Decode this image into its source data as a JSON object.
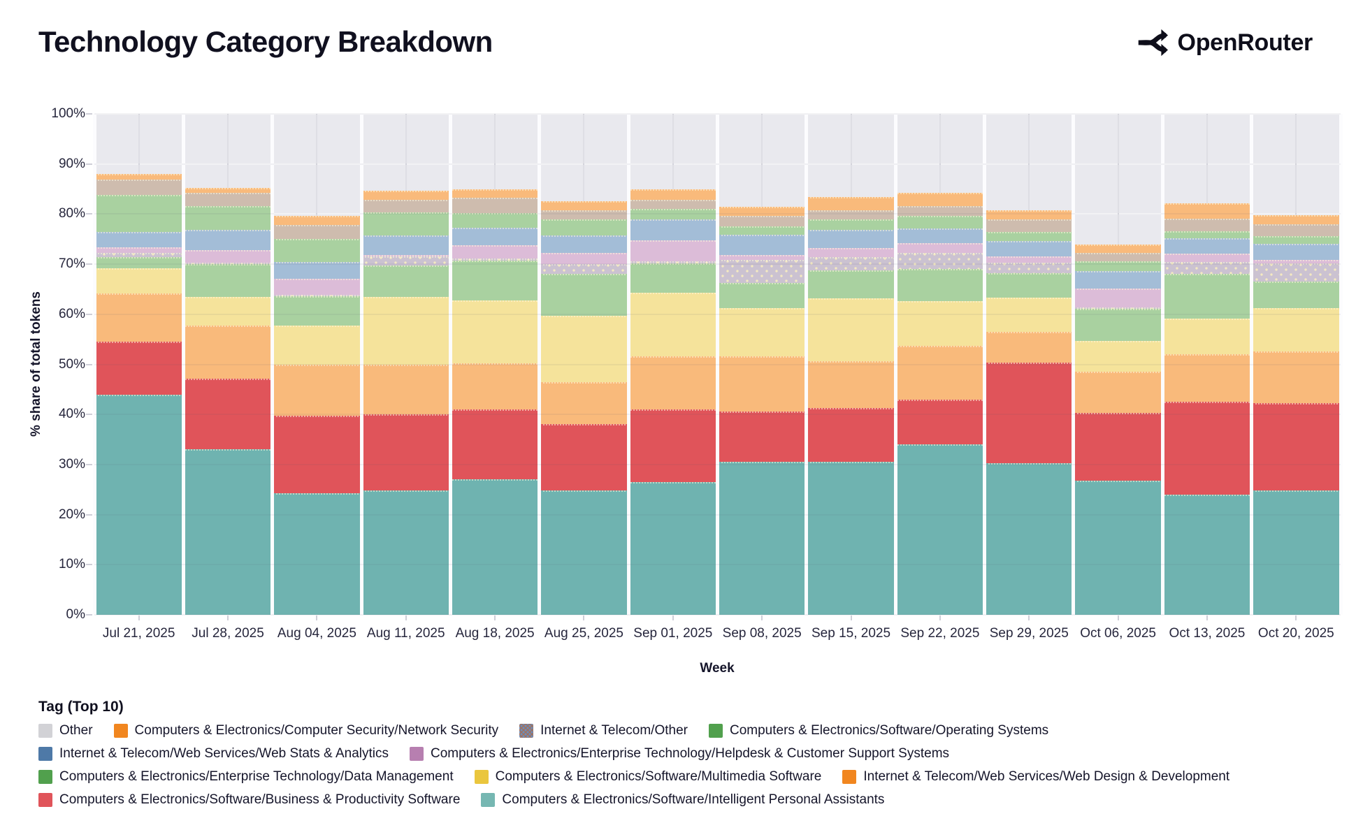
{
  "header": {
    "title": "Technology Category Breakdown",
    "brand": "OpenRouter"
  },
  "chart_data": {
    "type": "bar",
    "subtype": "stacked-percent-share",
    "title": "Technology Category Breakdown",
    "xlabel": "Week",
    "ylabel": "% share of total tokens",
    "ylim": [
      0,
      100
    ],
    "grid": true,
    "yticks": [
      "0%",
      "10%",
      "20%",
      "30%",
      "40%",
      "50%",
      "60%",
      "70%",
      "80%",
      "90%",
      "100%"
    ],
    "categories": [
      "Jul 21, 2025",
      "Jul 28, 2025",
      "Aug 04, 2025",
      "Aug 11, 2025",
      "Aug 18, 2025",
      "Aug 25, 2025",
      "Sep 01, 2025",
      "Sep 08, 2025",
      "Sep 15, 2025",
      "Sep 22, 2025",
      "Sep 29, 2025",
      "Oct 06, 2025",
      "Oct 13, 2025",
      "Oct 20, 2025"
    ],
    "stack_note": "series listed bottom-to-top; bars do not sum to 100%, remainder is unshaded plot background",
    "series": [
      {
        "name": "Computers & Electronics/Software/Intelligent Personal Assistants",
        "fill": "#6FB3B0",
        "pattern": "none",
        "values": [
          44.0,
          33.0,
          24.3,
          24.8,
          27.1,
          24.8,
          26.5,
          30.6,
          30.6,
          34.0,
          30.3,
          26.8,
          24.0,
          24.8
        ]
      },
      {
        "name": "Computers & Electronics/Software/Business & Productivity Software",
        "fill": "#E0545A",
        "pattern": "none",
        "values": [
          10.5,
          14.1,
          15.5,
          15.2,
          13.9,
          13.3,
          14.5,
          10.0,
          10.7,
          8.9,
          20.1,
          13.5,
          18.5,
          17.4
        ]
      },
      {
        "name": "Internet & Telecom/Web Services/Web Design & Development",
        "fill": "#F9BA7B",
        "pattern": "none",
        "values": [
          9.7,
          10.6,
          10.2,
          10.0,
          9.2,
          8.4,
          10.6,
          11.0,
          9.3,
          10.8,
          6.1,
          8.3,
          9.5,
          10.4
        ]
      },
      {
        "name": "Computers & Electronics/Software/Multimedia Software",
        "fill": "#F5E39B",
        "pattern": "none",
        "values": [
          5.0,
          5.7,
          7.7,
          13.5,
          12.6,
          13.2,
          12.7,
          9.7,
          12.6,
          8.9,
          6.8,
          6.1,
          7.1,
          8.6
        ]
      },
      {
        "name": "Computers & Electronics/Enterprise Technology/Data Management",
        "fill": "#A9D1A0",
        "pattern": "none",
        "values": [
          2.2,
          6.6,
          5.9,
          6.3,
          7.9,
          8.4,
          5.8,
          5.0,
          5.5,
          6.4,
          4.9,
          6.4,
          8.9,
          5.4
        ]
      },
      {
        "name": "Other",
        "fill": "#CBC2D1",
        "pattern": "cream-dots",
        "values": [
          0.8,
          0.2,
          0.3,
          1.8,
          0.5,
          1.9,
          0.5,
          4.5,
          2.7,
          3.3,
          2.1,
          0.3,
          2.4,
          3.5
        ]
      },
      {
        "name": "Computers & Electronics/Enterprise Technology/Helpdesk & Customer Support Systems",
        "fill": "#DCBCD8",
        "pattern": "none",
        "values": [
          1.1,
          2.5,
          3.2,
          0.3,
          2.6,
          2.3,
          4.2,
          1.1,
          1.8,
          1.9,
          1.2,
          3.7,
          1.7,
          0.7
        ]
      },
      {
        "name": "Internet & Telecom/Web Services/Web Stats & Analytics",
        "fill": "#A3BDD7",
        "pattern": "none",
        "values": [
          3.1,
          4.1,
          3.4,
          3.8,
          3.5,
          3.5,
          4.1,
          4.0,
          3.6,
          3.0,
          3.1,
          3.6,
          3.1,
          3.3
        ]
      },
      {
        "name": "Computers & Electronics/Software/Operating Systems",
        "fill": "#A9D1A0",
        "pattern": "none",
        "values": [
          7.5,
          4.7,
          4.5,
          4.6,
          2.9,
          3.1,
          2.2,
          1.7,
          2.2,
          2.5,
          1.9,
          1.9,
          1.4,
          1.5
        ]
      },
      {
        "name": "Internet & Telecom/Other",
        "fill": "#CEBCAE",
        "pattern": "none",
        "values": [
          3.0,
          2.7,
          2.9,
          2.6,
          3.1,
          1.9,
          1.8,
          2.1,
          1.8,
          1.9,
          2.5,
          1.6,
          2.5,
          2.4
        ]
      },
      {
        "name": "Computers & Electronics/Computer Security/Network Security",
        "fill": "#F9BA7B",
        "pattern": "none",
        "values": [
          1.1,
          1.0,
          1.8,
          1.8,
          1.6,
          1.8,
          2.1,
          1.8,
          2.6,
          2.7,
          1.8,
          1.7,
          3.1,
          1.8
        ]
      }
    ],
    "legend_title": "Tag (Top 10)",
    "legend_position": "bottom-left",
    "legend_rows": [
      [
        {
          "label": "Other",
          "color": "#D2D2D6",
          "pattern": "none"
        },
        {
          "label": "Computers & Electronics/Computer Security/Network Security",
          "color": "#F1861F",
          "pattern": "none"
        },
        {
          "label": "Internet & Telecom/Other",
          "color": "#A0725F",
          "pattern": "blue-dots"
        },
        {
          "label": "Computers & Electronics/Software/Operating Systems",
          "color": "#51A04D",
          "pattern": "none"
        }
      ],
      [
        {
          "label": "Internet & Telecom/Web Services/Web Stats & Analytics",
          "color": "#4E79A7",
          "pattern": "none"
        },
        {
          "label": "Computers & Electronics/Enterprise Technology/Helpdesk & Customer Support Systems",
          "color": "#B77FB0",
          "pattern": "none"
        }
      ],
      [
        {
          "label": "Computers & Electronics/Enterprise Technology/Data Management",
          "color": "#51A04D",
          "pattern": "none"
        },
        {
          "label": "Computers & Electronics/Software/Multimedia Software",
          "color": "#EAC63E",
          "pattern": "none"
        },
        {
          "label": "Internet & Telecom/Web Services/Web Design & Development",
          "color": "#F1861F",
          "pattern": "none"
        }
      ],
      [
        {
          "label": "Computers & Electronics/Software/Business & Productivity Software",
          "color": "#E0545A",
          "pattern": "none"
        },
        {
          "label": "Computers & Electronics/Software/Intelligent Personal Assistants",
          "color": "#76B7B2",
          "pattern": "none"
        }
      ]
    ],
    "plot_bg": "#E9E9EE",
    "accent_text_color": "#10101F"
  }
}
